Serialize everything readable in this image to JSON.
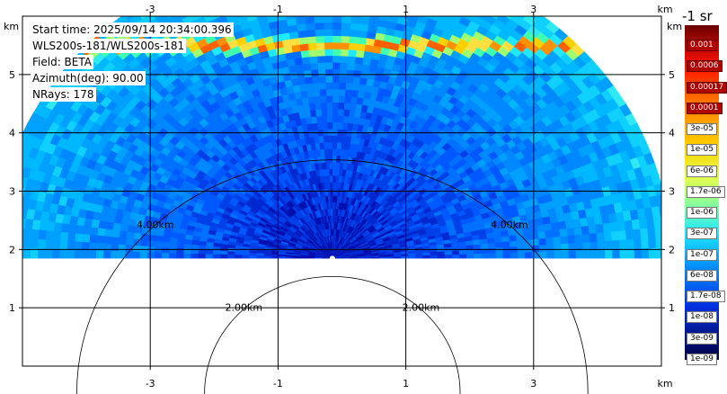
{
  "info": {
    "start_time": "Start time: 2025/09/14 20:34:00.396",
    "instrument": "WLS200s-181/WLS200s-181",
    "field": "Field: BETA",
    "azimuth": "Azimuth(deg): 90.00",
    "nrays": "NRays: 178"
  },
  "chart_data": {
    "type": "heatmap",
    "xlabel": "km",
    "ylabel": "km",
    "x_ticks": [
      "-3",
      "-1",
      "1",
      "3"
    ],
    "x_tick_values": [
      -3,
      -1,
      1,
      3
    ],
    "y_ticks": [
      "1",
      "2",
      "3",
      "4",
      "5"
    ],
    "y_tick_values": [
      1,
      2,
      3,
      4,
      5
    ],
    "xlim": [
      -5.0,
      5.0
    ],
    "ylim": [
      0.0,
      6.0
    ],
    "range_rings": [
      {
        "radius_km": 2.0,
        "label": "2.00km"
      },
      {
        "radius_km": 4.0,
        "label": "4.00km"
      }
    ],
    "sector": {
      "center_x_km": -0.15,
      "center_y_km": 1.85,
      "inner_radius_km": 0.05,
      "outer_radius_km": 5.3
    },
    "high_layer_height_km": 5.5,
    "colorbar": {
      "title_fragment": "-1 sr",
      "labels": [
        "0.001",
        "0.0006",
        "0.00017",
        "0.0001",
        "3e-05",
        "1e-05",
        "6e-06",
        "1.7e-06",
        "1e-06",
        "3e-07",
        "1e-07",
        "6e-08",
        "1.7e-08",
        "1e-08",
        "3e-09",
        "1e-09"
      ],
      "colors": [
        "#7a0000",
        "#c00000",
        "#ff2000",
        "#ff7000",
        "#ffb000",
        "#ffe000",
        "#e8ff40",
        "#a0ff70",
        "#40ffb0",
        "#00e0ff",
        "#00a0ff",
        "#0060ff",
        "#0030e0",
        "#0010b0",
        "#000880",
        "#000040"
      ]
    }
  }
}
